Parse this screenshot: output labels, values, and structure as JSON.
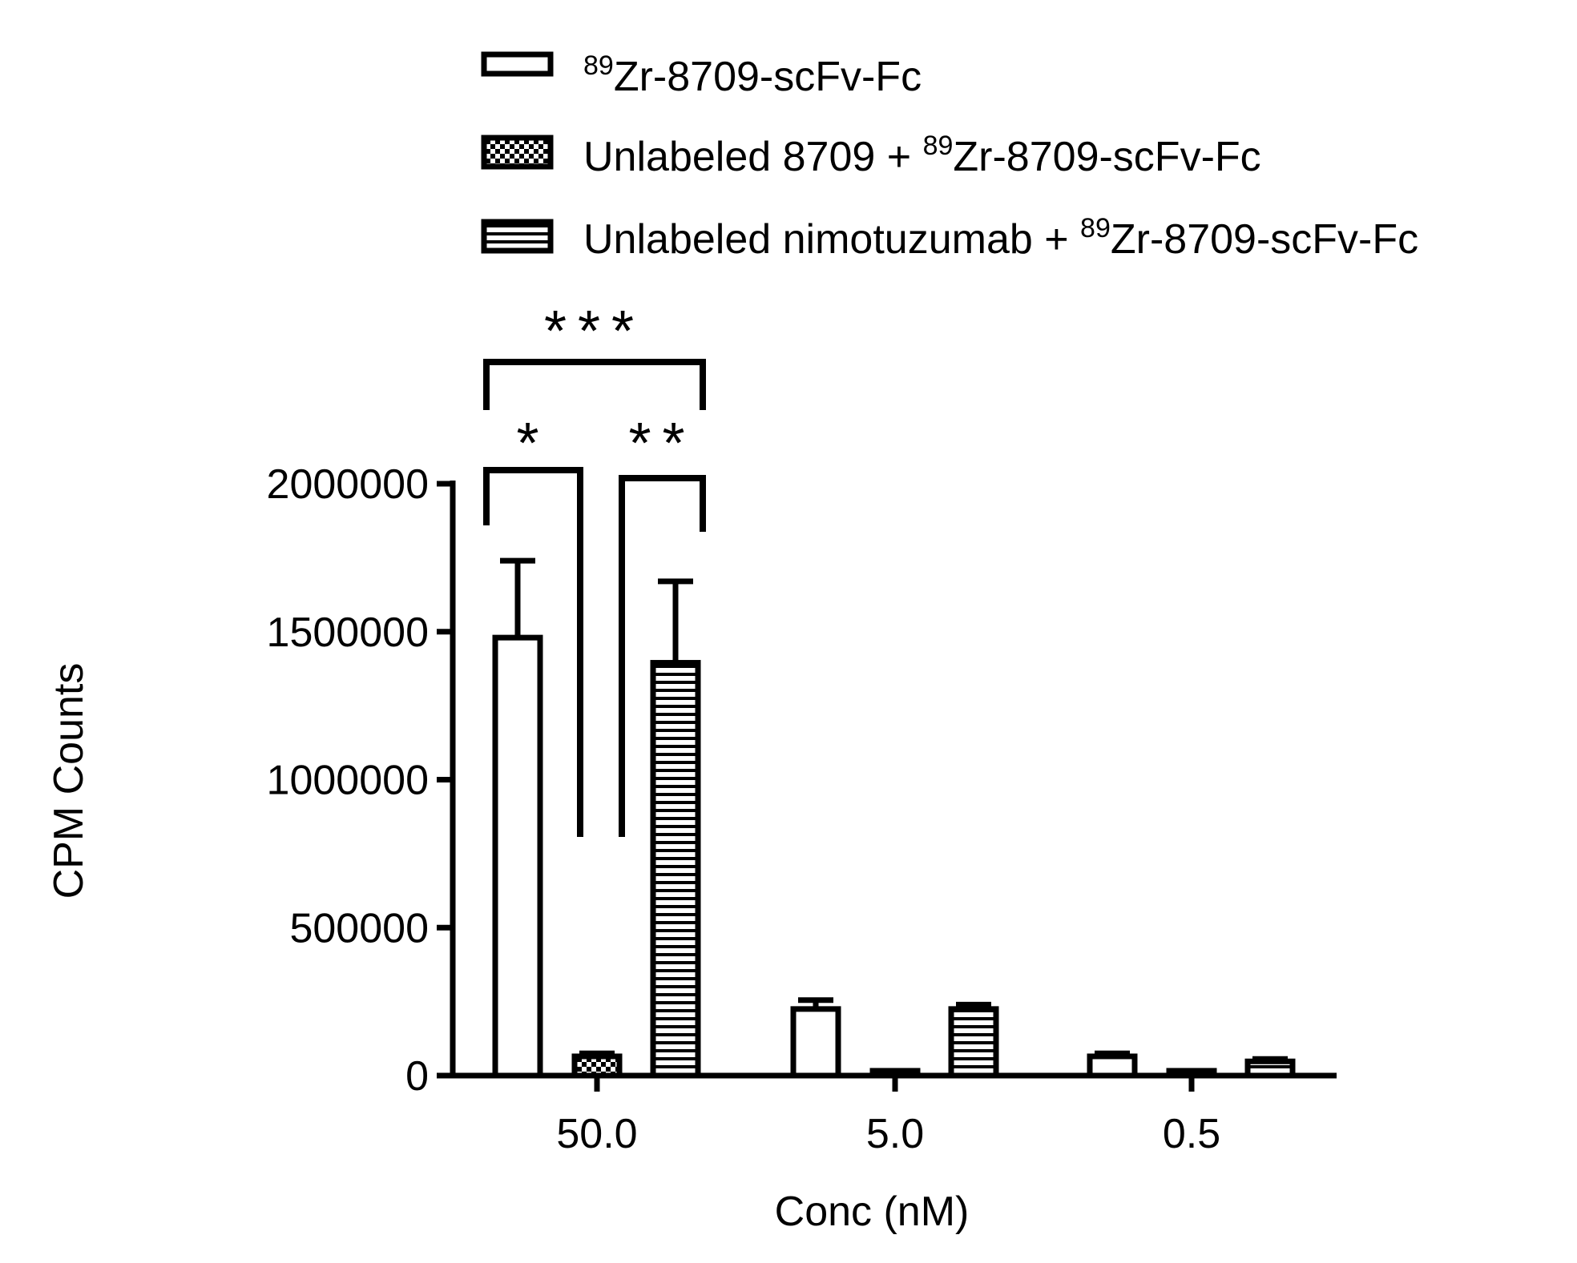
{
  "chart_data": {
    "type": "bar",
    "xlabel": "Conc (nM)",
    "ylabel": "CPM Counts",
    "categories": [
      "50.0",
      "5.0",
      "0.5"
    ],
    "yticks": [
      "0",
      "500000",
      "1000000",
      "1500000",
      "2000000"
    ],
    "ylim": [
      0,
      2000000
    ],
    "grid": false,
    "legend_position": "top",
    "series": [
      {
        "name": "89Zr-8709-scFv-Fc",
        "legend": {
          "sup": "89",
          "text": "Zr-8709-scFv-Fc"
        },
        "pattern": "open",
        "values": [
          1480000,
          225000,
          65000
        ],
        "errors": [
          260000,
          30000,
          10000
        ]
      },
      {
        "name": "Unlabeled 8709 + 89Zr-8709-scFv-Fc",
        "legend": {
          "pre": "Unlabeled 8709 + ",
          "sup": "89",
          "text": "Zr-8709-scFv-Fc"
        },
        "pattern": "checker",
        "values": [
          65000,
          5000,
          2000
        ],
        "errors": [
          10000,
          3000,
          1000
        ]
      },
      {
        "name": "Unlabeled nimotuzumab + 89Zr-8709-scFv-Fc",
        "legend": {
          "pre": "Unlabeled nimotuzumab + ",
          "sup": "89",
          "text": "Zr-8709-scFv-Fc"
        },
        "pattern": "horizontal-stripes",
        "values": [
          1395000,
          225000,
          48000
        ],
        "errors": [
          275000,
          15000,
          8000
        ]
      }
    ],
    "significance": [
      {
        "label": "***",
        "from_series": 0,
        "to_series": 2,
        "category": 0
      },
      {
        "label": "*",
        "from_series": 0,
        "to_series": 1,
        "category": 0
      },
      {
        "label": "**",
        "from_series": 1,
        "to_series": 2,
        "category": 0
      }
    ],
    "colors": {
      "stroke": "#000000",
      "fill": "#ffffff"
    }
  }
}
